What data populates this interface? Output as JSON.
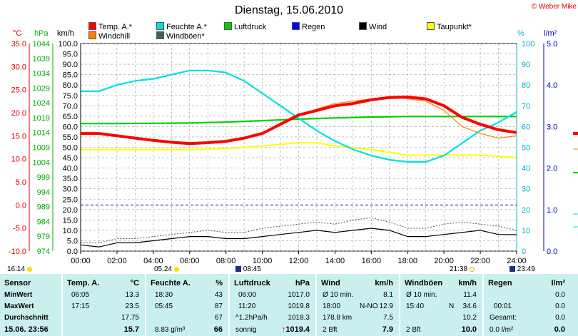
{
  "header": {
    "title": "Dienstag, 15.06.2010",
    "copyright": "© Weber Mike"
  },
  "legend": [
    {
      "label": "Temp. A.*",
      "color": "#ff0000"
    },
    {
      "label": "Feuchte A.*",
      "color": "#00e0e0"
    },
    {
      "label": "Luftdruck",
      "color": "#00d000"
    },
    {
      "label": "Regen",
      "color": "#0000ff"
    },
    {
      "label": "Wind",
      "color": "#000000"
    },
    {
      "label": "Taupunkt*",
      "color": "#ffff00"
    },
    {
      "label": "Windchill",
      "color": "#ff8000"
    },
    {
      "label": "Windböen*",
      "color": "#406060"
    }
  ],
  "units": {
    "temp": "°C",
    "pressure": "hPa",
    "wind": "km/h",
    "humidity": "%",
    "rain": "l/m²"
  },
  "chart_data": {
    "type": "line",
    "x_ticks": [
      "00:00",
      "02:00",
      "04:00",
      "06:00",
      "08:00",
      "10:00",
      "12:00",
      "14:00",
      "16:00",
      "18:00",
      "20:00",
      "22:00",
      "24:00"
    ],
    "axes": {
      "temp": {
        "min": -10,
        "max": 35,
        "ticks": [
          "35.0",
          "30.0",
          "25.0",
          "20.0",
          "15.0",
          "10.0",
          "5.0",
          "0.0",
          "-5.0",
          "-10.0"
        ],
        "color": "#e00000"
      },
      "pressure": {
        "min": 974,
        "max": 1044,
        "ticks": [
          "1044",
          "1039",
          "1034",
          "1029",
          "1024",
          "1019",
          "1014",
          "1009",
          "1004",
          "999",
          "994",
          "989",
          "984",
          "979",
          "974"
        ],
        "color": "#00b000"
      },
      "wind": {
        "min": 0,
        "max": 100,
        "ticks": [
          "100.0",
          "95.0",
          "90.0",
          "85.0",
          "80.0",
          "75.0",
          "70.0",
          "65.0",
          "60.0",
          "55.0",
          "50.0",
          "45.0",
          "40.0",
          "35.0",
          "30.0",
          "25.0",
          "20.0",
          "15.0",
          "10.0",
          "5.0",
          "0.0"
        ],
        "color": "#000000"
      },
      "humidity": {
        "min": 0,
        "max": 100,
        "ticks": [
          "100",
          "90",
          "80",
          "70",
          "60",
          "50",
          "40",
          "30",
          "20",
          "10",
          "0"
        ],
        "color": "#00b0c0"
      },
      "rain": {
        "min": 0,
        "max": 5,
        "ticks": [
          "5.0",
          "4.0",
          "3.0",
          "2.0",
          "1.0",
          "0.0"
        ],
        "color": "#0000c0"
      }
    },
    "series": [
      {
        "name": "Temp. A.*",
        "axis": "temp",
        "color": "#ff0000",
        "x": [
          0,
          1,
          2,
          3,
          4,
          5,
          6,
          7,
          8,
          9,
          10,
          11,
          12,
          13,
          14,
          15,
          16,
          17,
          18,
          19,
          20,
          21,
          22,
          23,
          24
        ],
        "y": [
          15.5,
          15.5,
          15.0,
          14.5,
          14.0,
          13.6,
          13.3,
          13.5,
          13.8,
          14.5,
          15.5,
          17.5,
          19.5,
          20.5,
          21.5,
          22.0,
          22.8,
          23.3,
          23.4,
          23.0,
          21.5,
          19.0,
          17.5,
          16.3,
          15.7
        ]
      },
      {
        "name": "Windchill",
        "axis": "temp",
        "color": "#ff8000",
        "x": [
          0,
          1,
          2,
          3,
          4,
          5,
          6,
          7,
          8,
          9,
          10,
          11,
          12,
          13,
          14,
          15,
          16,
          17,
          18,
          19,
          20,
          21,
          22,
          23,
          24
        ],
        "y": [
          15.5,
          15.5,
          15.0,
          14.5,
          14.0,
          13.6,
          13.3,
          13.5,
          13.8,
          14.5,
          15.5,
          17.3,
          19.3,
          20.8,
          22.0,
          22.5,
          23.0,
          23.5,
          23.0,
          22.5,
          20.5,
          17.0,
          15.5,
          14.5,
          15.0
        ]
      },
      {
        "name": "Feuchte A.*",
        "axis": "humidity",
        "color": "#00e0e0",
        "x": [
          0,
          1,
          2,
          3,
          4,
          5,
          6,
          7,
          8,
          9,
          10,
          11,
          12,
          13,
          14,
          15,
          16,
          17,
          18,
          19,
          20,
          21,
          22,
          23,
          24
        ],
        "y": [
          77,
          77,
          80,
          82,
          83,
          85,
          87,
          87,
          86,
          82,
          76,
          70,
          64,
          58,
          53,
          49,
          46,
          44,
          43,
          43,
          46,
          52,
          58,
          62,
          67
        ]
      },
      {
        "name": "Luftdruck",
        "axis": "pressure",
        "color": "#00d000",
        "x": [
          0,
          2,
          4,
          6,
          8,
          10,
          12,
          14,
          16,
          18,
          20,
          22,
          24
        ],
        "y": [
          1017.0,
          1017.0,
          1017.1,
          1017.2,
          1017.5,
          1018.0,
          1018.5,
          1018.9,
          1019.2,
          1019.4,
          1019.4,
          1019.4,
          1019.4
        ]
      },
      {
        "name": "Taupunkt*",
        "axis": "temp",
        "color": "#ffff00",
        "x": [
          0,
          2,
          4,
          6,
          8,
          10,
          12,
          13,
          14,
          16,
          18,
          20,
          22,
          24
        ],
        "y": [
          12.0,
          12.0,
          12.0,
          12.0,
          12.2,
          12.8,
          13.5,
          13.5,
          12.8,
          12.0,
          10.8,
          10.8,
          10.8,
          10.3
        ]
      },
      {
        "name": "Wind",
        "axis": "wind",
        "color": "#000000",
        "x": [
          0,
          1,
          2,
          3,
          4,
          5,
          6,
          7,
          8,
          9,
          10,
          11,
          12,
          13,
          14,
          15,
          16,
          17,
          18,
          19,
          20,
          21,
          22,
          23,
          24
        ],
        "y": [
          3,
          2,
          4,
          4,
          5,
          6,
          7,
          7,
          6,
          6,
          7,
          8,
          9,
          10,
          9,
          10,
          11,
          10,
          7,
          7,
          8,
          9,
          10,
          8,
          7.9
        ]
      },
      {
        "name": "Windböen*",
        "axis": "wind",
        "color": "#406060",
        "x": [
          0,
          1,
          2,
          3,
          4,
          5,
          6,
          7,
          8,
          9,
          10,
          11,
          12,
          13,
          14,
          15,
          16,
          17,
          18,
          19,
          20,
          21,
          22,
          23,
          24
        ],
        "y": [
          4,
          4,
          6,
          6,
          7,
          8,
          9,
          10,
          9,
          9,
          11,
          12,
          13,
          14,
          13,
          15,
          16,
          14,
          11,
          11,
          13,
          14,
          13,
          12,
          10.0
        ]
      }
    ],
    "reference_lines": [
      {
        "axis": "temp",
        "value": 0.0,
        "color": "#0000c0",
        "style": "dashed"
      }
    ]
  },
  "time_markers": [
    {
      "label": "16:14",
      "icon": "moonrise-icon"
    },
    {
      "label": "05:24",
      "icon": "sunrise-icon"
    },
    {
      "label": "08:45",
      "icon": "moon-icon"
    },
    {
      "label": "21:38",
      "icon": "sunset-icon"
    },
    {
      "label": "23:49",
      "icon": "moon-icon"
    }
  ],
  "table": {
    "sensor": {
      "header": "Sensor",
      "rows": [
        "MinWert",
        "MaxWert",
        "Durchschnitt"
      ],
      "timestamp": "15.06. 23:56"
    },
    "temp": {
      "header": "Temp. A.",
      "unit": "°C",
      "min_time": "06:05",
      "min": "13.3",
      "max_time": "17:15",
      "max": "23.5",
      "avg": "17.75",
      "current": "15.7"
    },
    "humidity": {
      "header": "Feuchte A.",
      "unit": "%",
      "min_time": "18:30",
      "min": "43",
      "max_time": "05:45",
      "max": "87",
      "avg": "67",
      "abs": "8.83 g/m³",
      "current": "66"
    },
    "pressure": {
      "header": "Luftdruck",
      "unit": "hPa",
      "min_time": "06:00",
      "min": "1017.0",
      "max_time": "11:20",
      "max": "1019.8",
      "trend_label": "^1.2hPa/h",
      "trend": "1018.3",
      "weather": "sonnig",
      "current": "1019.4"
    },
    "wind": {
      "header": "Wind",
      "unit": "km/h",
      "r1_label": "Ø 10 min.",
      "r1_value": "8.1",
      "r2_time": "18:00",
      "r2_dir": "N-NO",
      "r2_value": "12.9",
      "r3_label": "178.8 km",
      "r3_value": "7.5",
      "bft": "2 Bft",
      "current": "7.9"
    },
    "gusts": {
      "header": "Windböen",
      "unit": "km/h",
      "r1_label": "Ø 10 min.",
      "r1_value": "11.4",
      "r2_time": "15:40",
      "r2_dir": "N",
      "r2_value": "34.6",
      "r3_value": "10.2",
      "bft": "2 Bft",
      "current": "10.0"
    },
    "rain": {
      "header": "Regen",
      "unit": "l/m²",
      "r1_value": "0.0",
      "r2_time": "00:01",
      "r2_value": "0.0",
      "r3_label": "Gesamt:",
      "r3_value": "0.0",
      "r4_label": "0.0 l/m²",
      "current": "0.0"
    }
  }
}
